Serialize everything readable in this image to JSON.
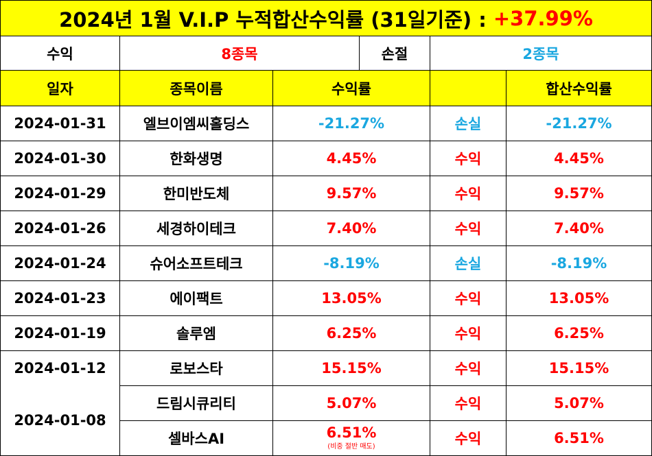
{
  "title": {
    "text": "2024년 1월 V.I.P 누적합산수익률 (31일기준) :",
    "value": "+37.99%"
  },
  "summary": {
    "profit_label": "수익",
    "profit_count": "8종목",
    "loss_label": "손절",
    "loss_count": "2종목"
  },
  "headers": {
    "date": "일자",
    "name": "종목이름",
    "rate": "수익률",
    "result": "",
    "total": "합산수익률"
  },
  "rows": [
    {
      "date": "2024-01-31",
      "name": "엘브이엠씨홀딩스",
      "rate": "-21.27%",
      "result": "손실",
      "total": "-21.27%",
      "tone": "blue"
    },
    {
      "date": "2024-01-30",
      "name": "한화생명",
      "rate": "4.45%",
      "result": "수익",
      "total": "4.45%",
      "tone": "red"
    },
    {
      "date": "2024-01-29",
      "name": "한미반도체",
      "rate": "9.57%",
      "result": "수익",
      "total": "9.57%",
      "tone": "red"
    },
    {
      "date": "2024-01-26",
      "name": "세경하이테크",
      "rate": "7.40%",
      "result": "수익",
      "total": "7.40%",
      "tone": "red"
    },
    {
      "date": "2024-01-24",
      "name": "슈어소프트테크",
      "rate": "-8.19%",
      "result": "손실",
      "total": "-8.19%",
      "tone": "blue"
    },
    {
      "date": "2024-01-23",
      "name": "에이팩트",
      "rate": "13.05%",
      "result": "수익",
      "total": "13.05%",
      "tone": "red"
    },
    {
      "date": "2024-01-19",
      "name": "솔루엠",
      "rate": "6.25%",
      "result": "수익",
      "total": "6.25%",
      "tone": "red"
    },
    {
      "date": "2024-01-12",
      "name": "로보스타",
      "rate": "15.15%",
      "result": "수익",
      "total": "15.15%",
      "tone": "red"
    },
    {
      "date": "2024-01-08",
      "name": "드림시큐리티",
      "rate": "5.07%",
      "result": "수익",
      "total": "5.07%",
      "tone": "red"
    },
    {
      "date": "",
      "name": "셀바스AI",
      "rate": "6.51%",
      "rate_note": "(비중 절반 매도)",
      "result": "수익",
      "total": "6.51%",
      "tone": "red"
    }
  ],
  "colors": {
    "header_bg": "#ffff00",
    "profit": "#ff0000",
    "loss": "#1aa7e0"
  }
}
